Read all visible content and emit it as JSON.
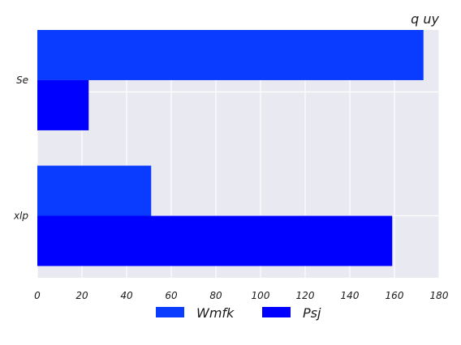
{
  "chart_data": {
    "type": "bar",
    "orientation": "horizontal",
    "title": "q uy",
    "categories": [
      "Se",
      "xlp"
    ],
    "series": [
      {
        "name": "Wmfk",
        "values": [
          173,
          51
        ],
        "color": "#0a3cff"
      },
      {
        "name": "Psj",
        "values": [
          23,
          159
        ],
        "color": "#0000ff"
      }
    ],
    "xlim": [
      0,
      180
    ],
    "xticks": [
      0,
      20,
      40,
      60,
      80,
      100,
      120,
      140,
      160,
      180
    ],
    "grid": true,
    "background": "#e9e9f1",
    "legend_position": "bottom-center"
  }
}
